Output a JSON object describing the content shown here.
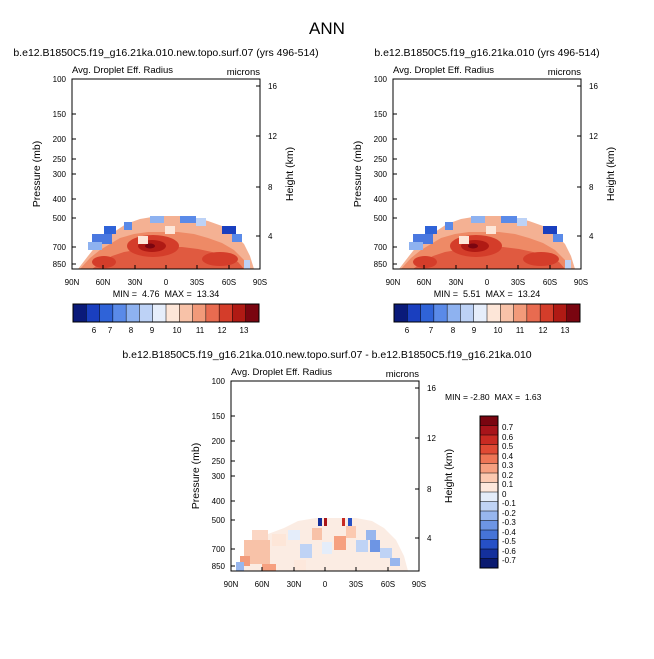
{
  "page_title": "ANN",
  "chart_data": [
    {
      "type": "heatmap",
      "title": "b.e12.B1850C5.f19_g16.21ka.010.new.topo.surf.07 (yrs 496-514)",
      "subtitle_left": "Avg. Droplet Eff. Radius",
      "subtitle_right": "microns",
      "ylabel": "Pressure (mb)",
      "ylabel_right": "Height (km)",
      "x_ticks": [
        "90N",
        "60N",
        "30N",
        "0",
        "30S",
        "60S",
        "90S"
      ],
      "y_ticks": [
        "100",
        "150",
        "200",
        "250",
        "300",
        "400",
        "500",
        "700",
        "850"
      ],
      "y_right_ticks": [
        "16",
        "12",
        "8",
        "4"
      ],
      "stats_text": "MIN =  4.76  MAX =  13.34",
      "min": 4.76,
      "max": 13.34,
      "colorbar_ticks": [
        "6",
        "7",
        "8",
        "9",
        "10",
        "11",
        "12",
        "13"
      ],
      "colorbar_colors": [
        "#0a1a7a",
        "#1a3fbf",
        "#2f63d8",
        "#5a8ae8",
        "#8eb2f0",
        "#bdd2f6",
        "#e6eefb",
        "#fde6d8",
        "#f8c2a8",
        "#f29a7a",
        "#e86b50",
        "#d43d2a",
        "#b01a14",
        "#7a0510"
      ]
    },
    {
      "type": "heatmap",
      "title": "b.e12.B1850C5.f19_g16.21ka.010 (yrs 496-514)",
      "subtitle_left": "Avg. Droplet Eff. Radius",
      "subtitle_right": "microns",
      "ylabel": "Pressure (mb)",
      "ylabel_right": "Height (km)",
      "x_ticks": [
        "90N",
        "60N",
        "30N",
        "0",
        "30S",
        "60S",
        "90S"
      ],
      "y_ticks": [
        "100",
        "150",
        "200",
        "250",
        "300",
        "400",
        "500",
        "700",
        "850"
      ],
      "y_right_ticks": [
        "16",
        "12",
        "8",
        "4"
      ],
      "stats_text": "MIN =  5.51  MAX =  13.24",
      "min": 5.51,
      "max": 13.24,
      "colorbar_ticks": [
        "6",
        "7",
        "8",
        "9",
        "10",
        "11",
        "12",
        "13"
      ],
      "colorbar_colors": [
        "#0a1a7a",
        "#1a3fbf",
        "#2f63d8",
        "#5a8ae8",
        "#8eb2f0",
        "#bdd2f6",
        "#e6eefb",
        "#fde6d8",
        "#f8c2a8",
        "#f29a7a",
        "#e86b50",
        "#d43d2a",
        "#b01a14",
        "#7a0510"
      ]
    },
    {
      "type": "heatmap",
      "title": "b.e12.B1850C5.f19_g16.21ka.010.new.topo.surf.07 - b.e12.B1850C5.f19_g16.21ka.010",
      "subtitle_left": "Avg. Droplet Eff. Radius",
      "subtitle_right": "microns",
      "ylabel": "Pressure (mb)",
      "ylabel_right": "Height (km)",
      "x_ticks": [
        "90N",
        "60N",
        "30N",
        "0",
        "30S",
        "60S",
        "90S"
      ],
      "y_ticks": [
        "100",
        "150",
        "200",
        "250",
        "300",
        "400",
        "500",
        "700",
        "850"
      ],
      "y_right_ticks": [
        "16",
        "12",
        "8",
        "4"
      ],
      "stats_text": "MIN = -2.80  MAX =  1.63",
      "min": -2.8,
      "max": 1.63,
      "colorbar_ticks": [
        "0.7",
        "0.6",
        "0.5",
        "0.4",
        "0.3",
        "0.2",
        "0.1",
        "0",
        "-0.1",
        "-0.2",
        "-0.3",
        "-0.4",
        "-0.5",
        "-0.6",
        "-0.7"
      ],
      "colorbar_colors": [
        "#7a0510",
        "#a8141a",
        "#c92a22",
        "#e04a34",
        "#ee7656",
        "#f6a080",
        "#fbc9b0",
        "#fde8dc",
        "#e4edfa",
        "#bfd3f5",
        "#97b6ee",
        "#6d95e4",
        "#4674d8",
        "#2650c6",
        "#14309c",
        "#0a1a70"
      ]
    }
  ]
}
